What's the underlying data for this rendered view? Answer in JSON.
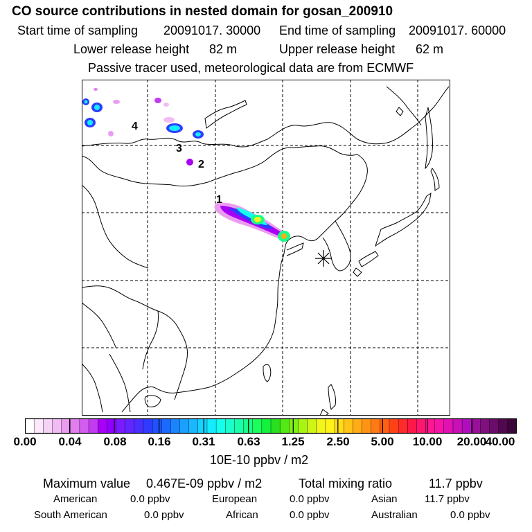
{
  "header": {
    "title": "CO  source contributions in nested domain for gosan_200910",
    "start_label": "Start time of sampling",
    "start_value": "20091017. 30000",
    "end_label": "End time of sampling",
    "end_value": "20091017. 60000",
    "lower_label": "Lower release height",
    "lower_value": "82 m",
    "upper_label": "Upper release height",
    "upper_value": "62 m",
    "tracer_note": "Passive tracer used, meteorological data are from ECMWF"
  },
  "map": {
    "site_marker": "asterisk",
    "labels": [
      "1",
      "2",
      "3",
      "4"
    ]
  },
  "colorbar": {
    "unit": "10E-10 ppbv / m2",
    "ticks": [
      "0.00",
      "0.04",
      "0.08",
      "0.16",
      "0.31",
      "0.63",
      "1.25",
      "2.50",
      "5.00",
      "10.00",
      "20.00",
      "40.00"
    ],
    "colors": [
      "#ffffff",
      "#fbe8fb",
      "#f6d2f7",
      "#f1bcf3",
      "#ec9cf0",
      "#e07ef0",
      "#d45cef",
      "#c23bf0",
      "#a800f5",
      "#9000ff",
      "#7a1aff",
      "#6226ff",
      "#4a2eff",
      "#2f3cff",
      "#1f52ff",
      "#1a6aff",
      "#1a84ff",
      "#1aa0ff",
      "#19b8ff",
      "#16d2ff",
      "#12ecff",
      "#14ffec",
      "#1affcc",
      "#1affaa",
      "#1aff88",
      "#1aff5a",
      "#12f23c",
      "#2ae01e",
      "#52ea14",
      "#7ef014",
      "#a8f514",
      "#cff516",
      "#f2f51a",
      "#fff21a",
      "#ffdc18",
      "#ffc418",
      "#ffac16",
      "#ff9414",
      "#ff7a14",
      "#ff6014",
      "#ff4216",
      "#ff2a2a",
      "#ff1848",
      "#ff1670",
      "#ff1690",
      "#f514a8",
      "#e012b4",
      "#c810b8",
      "#b00ebc",
      "#981098",
      "#801080",
      "#6a0c6a",
      "#520850",
      "#3a0638"
    ]
  },
  "stats": {
    "max_label": "Maximum value",
    "max_value": "0.467E-09 ppbv / m2",
    "total_label": "Total mixing ratio",
    "total_value": "11.7 ppbv",
    "regions": [
      {
        "name": "American",
        "value": "0.0 ppbv"
      },
      {
        "name": "European",
        "value": "0.0 ppbv"
      },
      {
        "name": "Asian",
        "value": "11.7 ppbv"
      },
      {
        "name": "South American",
        "value": "0.0 ppbv"
      },
      {
        "name": "African",
        "value": "0.0 ppbv"
      },
      {
        "name": "Australian",
        "value": "0.0 ppbv"
      }
    ]
  }
}
